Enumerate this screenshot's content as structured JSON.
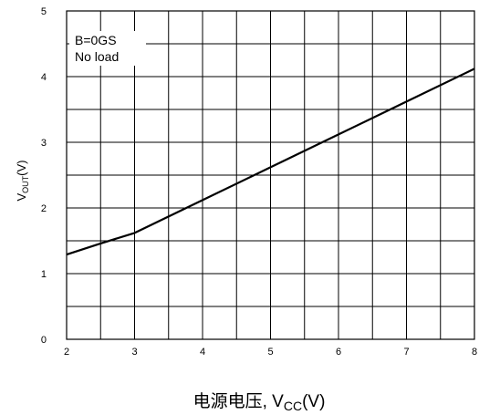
{
  "chart_data": {
    "type": "line",
    "title": "",
    "xlabel": {
      "main": "电源电压, V",
      "sub": "CC",
      "unit": "(V)"
    },
    "ylabel": {
      "main": "V",
      "sub": "OUT",
      "unit": "(V)"
    },
    "xlim": [
      2,
      8
    ],
    "ylim": [
      0,
      5
    ],
    "x_ticks": [
      "2",
      "3",
      "4",
      "5",
      "6",
      "7",
      "8"
    ],
    "y_ticks": [
      "0",
      "1",
      "2",
      "3",
      "4",
      "5"
    ],
    "grid": true,
    "annotation": [
      "B=0GS",
      "No load"
    ],
    "series": [
      {
        "x": [
          2,
          2.5,
          3,
          4,
          5,
          6,
          7,
          8
        ],
        "values": [
          1.29,
          1.46,
          1.62,
          2.12,
          2.62,
          3.12,
          3.62,
          4.12
        ]
      }
    ]
  }
}
